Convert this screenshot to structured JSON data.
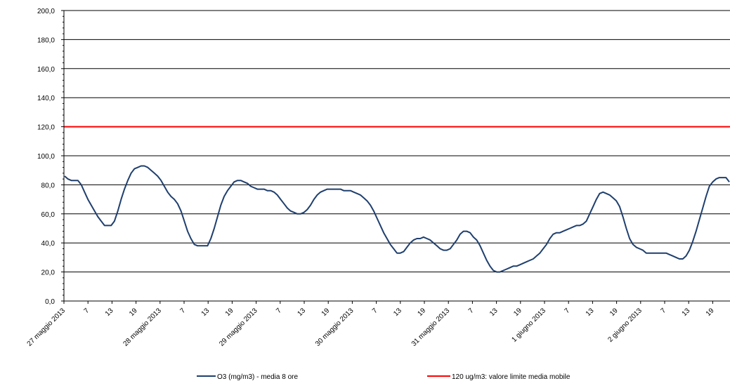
{
  "chart_data": {
    "type": "line",
    "ylim": [
      0,
      200
    ],
    "y_ticks": [
      "0,0",
      "20,0",
      "40,0",
      "60,0",
      "80,0",
      "100,0",
      "120,0",
      "140,0",
      "160,0",
      "180,0",
      "200,0"
    ],
    "x_tick_labels": [
      "27 maggio 2013",
      "7",
      "13",
      "19",
      "28 maggio 2013",
      "7",
      "13",
      "19",
      "29 maggio 2013",
      "7",
      "13",
      "19",
      "30 maggio 2013",
      "7",
      "13",
      "19",
      "31 maggio 2013",
      "7",
      "13",
      "19",
      "1 giugno 2013",
      "7",
      "13",
      "19",
      "2 giugno 2013",
      "7",
      "13",
      "19"
    ],
    "grid": "horizontal",
    "legend_position": "bottom",
    "series": [
      {
        "name": "O3 (mg/m3) - media 8 ore",
        "color": "#1f3f6e",
        "values": [
          86,
          84,
          83,
          83,
          83,
          80,
          75,
          70,
          66,
          62,
          58,
          55,
          52,
          52,
          52,
          55,
          62,
          70,
          77,
          83,
          88,
          91,
          92,
          93,
          93,
          92,
          90,
          88,
          86,
          83,
          79,
          75,
          72,
          70,
          67,
          62,
          55,
          48,
          43,
          39,
          38,
          38,
          38,
          38,
          43,
          50,
          58,
          66,
          72,
          76,
          79,
          82,
          83,
          83,
          82,
          81,
          79,
          78,
          77,
          77,
          77,
          76,
          76,
          75,
          73,
          70,
          67,
          64,
          62,
          61,
          60,
          60,
          61,
          63,
          66,
          70,
          73,
          75,
          76,
          77,
          77,
          77,
          77,
          77,
          76,
          76,
          76,
          75,
          74,
          73,
          71,
          69,
          66,
          62,
          57,
          52,
          47,
          43,
          39,
          36,
          33,
          33,
          34,
          37,
          40,
          42,
          43,
          43,
          44,
          43,
          42,
          40,
          38,
          36,
          35,
          35,
          36,
          39,
          42,
          46,
          48,
          48,
          47,
          44,
          42,
          38,
          33,
          28,
          24,
          21,
          20,
          20,
          21,
          22,
          23,
          24,
          24,
          25,
          26,
          27,
          28,
          29,
          31,
          33,
          36,
          39,
          43,
          46,
          47,
          47,
          48,
          49,
          50,
          51,
          52,
          52,
          53,
          55,
          60,
          65,
          70,
          74,
          75,
          74,
          73,
          71,
          69,
          65,
          58,
          50,
          43,
          39,
          37,
          36,
          35,
          33,
          33,
          33,
          33,
          33,
          33,
          33,
          32,
          31,
          30,
          29,
          29,
          31,
          35,
          41,
          48,
          56,
          64,
          72,
          79,
          82,
          84,
          85,
          85,
          85,
          82
        ]
      },
      {
        "name": "120 ug/m3: valore limite media mobile",
        "color": "#ff0000",
        "values": [
          120
        ]
      }
    ]
  }
}
